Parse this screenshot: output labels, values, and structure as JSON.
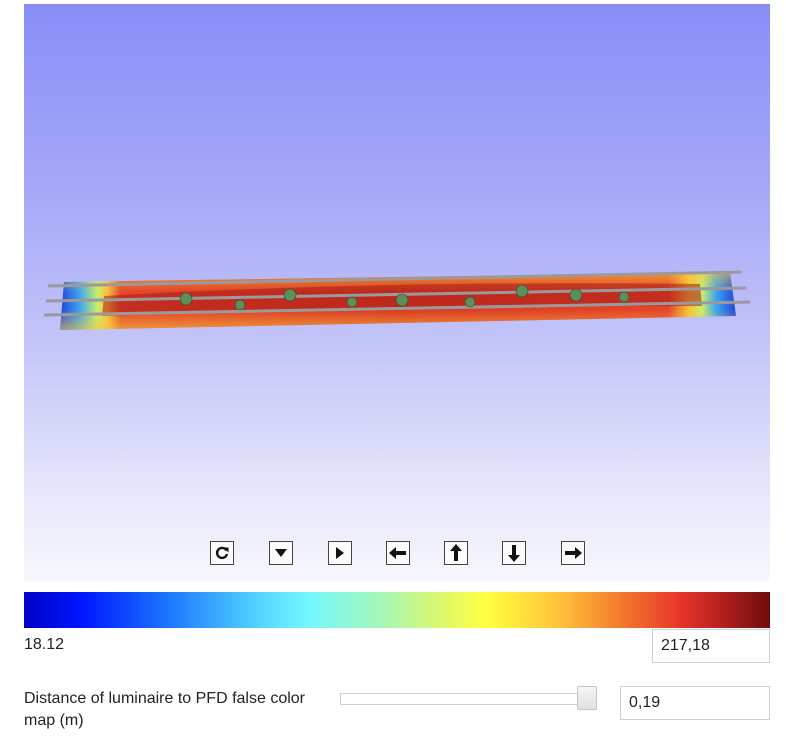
{
  "viewer": {
    "sky_top_color": "#8a8df7",
    "sky_bottom_color": "#f7f7fd"
  },
  "controls": [
    {
      "name": "rotate-reset-button",
      "icon": "rotate-icon"
    },
    {
      "name": "tilt-down-button",
      "icon": "triangle-down-icon"
    },
    {
      "name": "play-button",
      "icon": "triangle-right-icon"
    },
    {
      "name": "pan-left-button",
      "icon": "arrow-left-icon"
    },
    {
      "name": "pan-up-button",
      "icon": "arrow-up-icon"
    },
    {
      "name": "pan-down-button",
      "icon": "arrow-down-icon"
    },
    {
      "name": "pan-right-button",
      "icon": "arrow-right-icon"
    }
  ],
  "color_scale": {
    "min_label": "18.12",
    "max_value": "217,18",
    "colors": [
      "#0000c8",
      "#1f7cff",
      "#73f7ff",
      "#ffff40",
      "#f37a2d",
      "#e8342a",
      "#6e0c0c"
    ]
  },
  "distance": {
    "label": "Distance of luminaire to PFD false color map (m)",
    "value": "0,19",
    "slider_fraction": 0.98
  }
}
